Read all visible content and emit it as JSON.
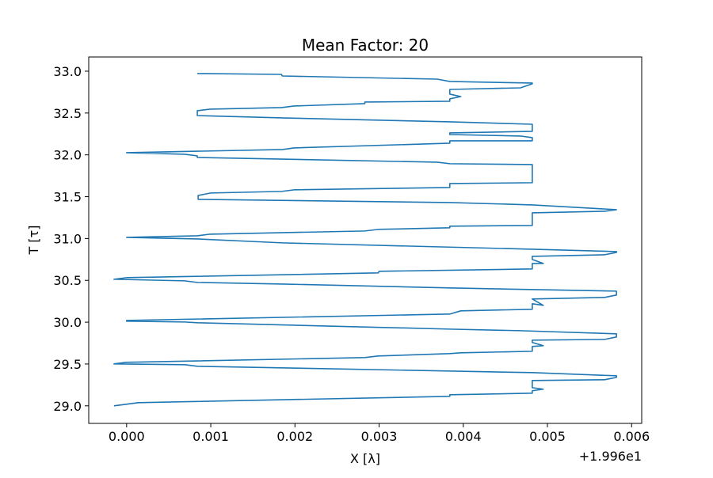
{
  "chart_data": {
    "type": "line",
    "title": "Mean Factor: 20",
    "x_label": "X [λ]",
    "y_label": "T [τ]",
    "x_offset_label": "+1.996e1",
    "color": "#1f77b4",
    "xlim": [
      -0.00045,
      0.00612
    ],
    "ylim": [
      28.79,
      33.17
    ],
    "xticks": [
      {
        "value": 0,
        "label": "0.000"
      },
      0.001,
      0.002,
      0.003,
      0.004,
      0.005,
      0.006
    ],
    "yticks": [
      {
        "value": 29,
        "label": "29.0"
      },
      29.5,
      {
        "value": 30,
        "label": "30.0"
      },
      30.5,
      {
        "value": 31,
        "label": "31.0"
      },
      31.5,
      {
        "value": 32,
        "label": "32.0"
      },
      32.5,
      {
        "value": 33,
        "label": "33.0"
      }
    ],
    "x": [
      -0.00015,
      0.00014,
      0.00384,
      0.00384,
      0.00482,
      0.00482,
      0.00495,
      0.00482,
      0.00482,
      0.00568,
      0.00582,
      0.00582,
      0.00482,
      0.00084,
      0.00069,
      -0.00015,
      0,
      0.00283,
      0.00299,
      0.00384,
      0.00397,
      0.00482,
      0.00482,
      0.00495,
      0.00482,
      0.00482,
      0.00568,
      0.00582,
      0.00582,
      0.00468,
      0.00384,
      0.00084,
      0.00069,
      0,
      0,
      0.00384,
      0.00397,
      0.00482,
      0.00482,
      0.00495,
      0.00482,
      0.00568,
      0.00582,
      0.00582,
      0.00384,
      0.00185,
      0.00084,
      0.00069,
      -0.00015,
      0,
      0.00299,
      0.003,
      0.00482,
      0.00482,
      0.00495,
      0.00482,
      0.00482,
      0.00568,
      0.00582,
      0.00582,
      0.00482,
      0.00185,
      0.00084,
      0,
      0.00084,
      0.00099,
      0.00283,
      0.00299,
      0.00384,
      0.00384,
      0.00482,
      0.00482,
      0.00568,
      0.00582,
      0.00482,
      0.00384,
      0.00085,
      0.00085,
      0.001,
      0.00184,
      0.00199,
      0.00384,
      0.00384,
      0.00482,
      0.00482,
      0.00384,
      0.00369,
      0.00084,
      0.00084,
      0.00069,
      0,
      0.00185,
      0.00199,
      0.00384,
      0.00384,
      0.00482,
      0.00482,
      0.00468,
      0.00384,
      0.00384,
      0.00482,
      0.00482,
      0.00384,
      0.00184,
      0.00084,
      0.00084,
      0.00099,
      0.00184,
      0.00199,
      0.00283,
      0.00283,
      0.00384,
      0.00384,
      0.00397,
      0.00384,
      0.00384,
      0.00468,
      0.00482,
      0.00482,
      0.00384,
      0.00369,
      0.00185,
      0.00184,
      0.00084
    ],
    "values": [
      29.0,
      29.038,
      29.113,
      29.132,
      29.151,
      29.18,
      29.199,
      29.217,
      29.303,
      29.312,
      29.34,
      29.359,
      29.397,
      29.473,
      29.492,
      29.501,
      29.52,
      29.577,
      29.596,
      29.624,
      29.634,
      29.652,
      29.709,
      29.719,
      29.757,
      29.785,
      29.794,
      29.823,
      29.861,
      29.898,
      29.917,
      29.993,
      30.002,
      30.012,
      30.021,
      30.097,
      30.135,
      30.154,
      30.22,
      30.201,
      30.277,
      30.296,
      30.324,
      30.371,
      30.409,
      30.456,
      30.475,
      30.494,
      30.513,
      30.532,
      30.589,
      30.608,
      30.636,
      30.702,
      30.702,
      30.749,
      30.787,
      30.806,
      30.834,
      30.844,
      30.872,
      30.948,
      30.995,
      31.014,
      31.033,
      31.052,
      31.09,
      31.109,
      31.128,
      31.147,
      31.156,
      31.307,
      31.326,
      31.345,
      31.402,
      31.43,
      31.468,
      31.515,
      31.544,
      31.563,
      31.582,
      31.61,
      31.657,
      31.667,
      31.884,
      31.894,
      31.912,
      31.969,
      31.988,
      32.007,
      32.026,
      32.064,
      32.083,
      32.139,
      32.168,
      32.168,
      32.206,
      32.225,
      32.243,
      32.262,
      32.281,
      32.366,
      32.395,
      32.442,
      32.47,
      32.527,
      32.546,
      32.565,
      32.584,
      32.612,
      32.631,
      32.641,
      32.669,
      32.697,
      32.726,
      32.782,
      32.801,
      32.849,
      32.858,
      32.877,
      32.905,
      32.943,
      32.962,
      32.972
    ]
  }
}
